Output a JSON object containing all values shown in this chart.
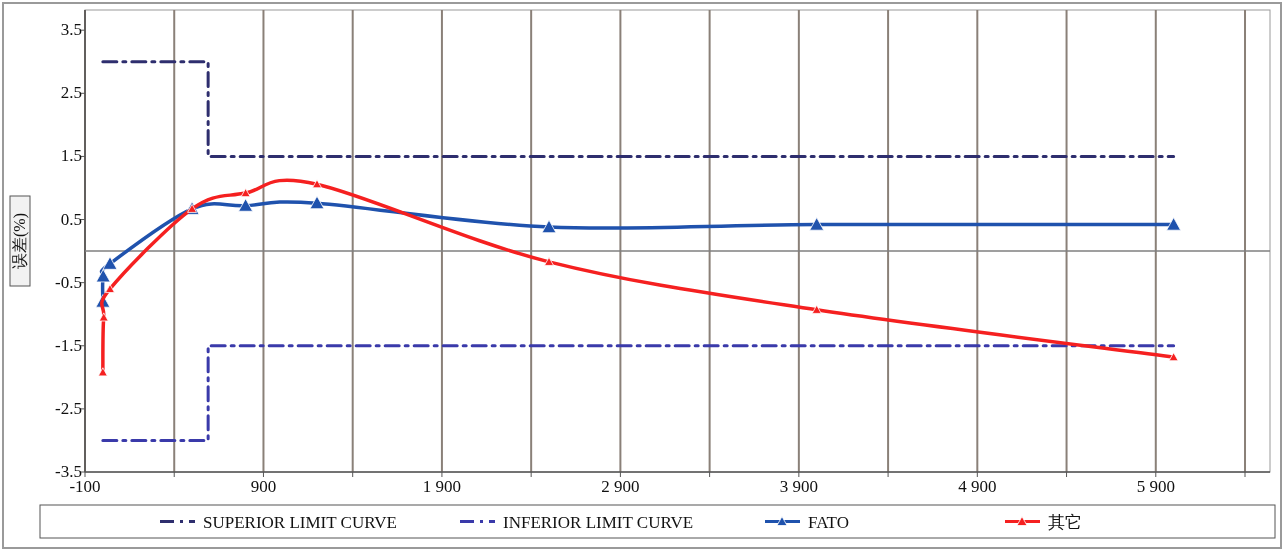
{
  "chart_data": {
    "type": "line",
    "ylabel": "误差(%)",
    "xlim": [
      -100,
      6540
    ],
    "ylim": [
      -3.5,
      3.82
    ],
    "xticks": [
      -100,
      {
        "value": 400,
        "label": null
      },
      {
        "value": 900,
        "label": "900"
      },
      {
        "value": 1400,
        "label": null
      },
      {
        "value": 1900,
        "label": "1 900"
      },
      {
        "value": 2400,
        "label": null
      },
      {
        "value": 2900,
        "label": "2 900"
      },
      {
        "value": 3400,
        "label": null
      },
      {
        "value": 3900,
        "label": "3 900"
      },
      {
        "value": 4400,
        "label": null
      },
      {
        "value": 4900,
        "label": "4 900"
      },
      {
        "value": 5400,
        "label": null
      },
      {
        "value": 5900,
        "label": "5 900"
      },
      {
        "value": 6400,
        "label": null
      }
    ],
    "yticks": [
      3.5,
      2.5,
      1.5,
      0.5,
      -0.5,
      -1.5,
      -2.5,
      -3.5
    ],
    "grid": "x",
    "legend": "bottom",
    "ref_lines": [
      {
        "axis": "y",
        "value": 0,
        "color": "#7f7f7f",
        "line_style": "solid"
      }
    ],
    "series": [
      {
        "name": "SUPERIOR LIMIT CURVE",
        "type": "step",
        "color": "#2e2e6e",
        "line_style": "dashed",
        "marker": "none",
        "x": [
          0,
          590,
          6000
        ],
        "values": [
          3,
          1.5,
          1.5
        ]
      },
      {
        "name": "INFERIOR LIMIT CURVE",
        "type": "step",
        "color": "#3a3aaa",
        "line_style": "dashed",
        "marker": "none",
        "x": [
          0,
          590,
          6000
        ],
        "values": [
          -3,
          -1.5,
          -1.5
        ]
      },
      {
        "name": "FATO",
        "type": "line",
        "color": "#1f52ad",
        "line_style": "solid",
        "marker": "triangle",
        "x": [
          0,
          2,
          40,
          500,
          800,
          1200,
          2500,
          4000,
          6000
        ],
        "values": [
          -0.8,
          -0.4,
          -0.2,
          0.67,
          0.72,
          0.76,
          0.38,
          0.42,
          0.42
        ]
      },
      {
        "name": "其它",
        "type": "line",
        "color": "#f52020",
        "line_style": "solid",
        "marker": "triangle",
        "x": [
          0,
          5,
          40,
          500,
          800,
          1200,
          2500,
          4000,
          6000
        ],
        "values": [
          -1.92,
          -1.05,
          -0.6,
          0.67,
          0.92,
          1.06,
          -0.17,
          -0.93,
          -1.68
        ]
      }
    ]
  }
}
